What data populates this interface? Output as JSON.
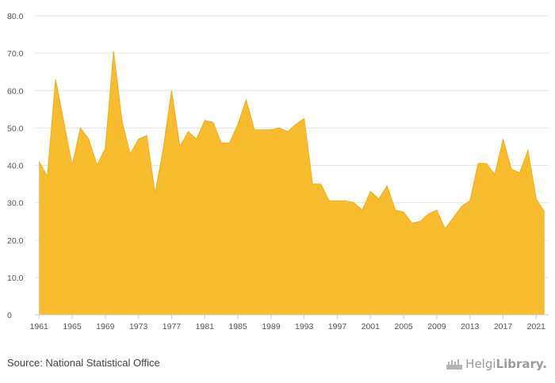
{
  "chart_data": {
    "type": "area",
    "x": [
      1961,
      1962,
      1963,
      1964,
      1965,
      1966,
      1967,
      1968,
      1969,
      1970,
      1971,
      1972,
      1973,
      1974,
      1975,
      1976,
      1977,
      1978,
      1979,
      1980,
      1981,
      1982,
      1983,
      1984,
      1985,
      1986,
      1987,
      1988,
      1989,
      1990,
      1991,
      1992,
      1993,
      1994,
      1995,
      1996,
      1997,
      1998,
      1999,
      2000,
      2001,
      2002,
      2003,
      2004,
      2005,
      2006,
      2007,
      2008,
      2009,
      2010,
      2011,
      2012,
      2013,
      2014,
      2015,
      2016,
      2017,
      2018,
      2019,
      2020,
      2021,
      2022
    ],
    "values": [
      41.0,
      37.0,
      63.0,
      51.5,
      40.0,
      50.0,
      47.0,
      40.0,
      44.5,
      70.5,
      52.0,
      43.0,
      47.0,
      48.0,
      32.5,
      44.5,
      60.0,
      45.0,
      49.0,
      47.0,
      52.0,
      51.5,
      46.0,
      46.0,
      51.0,
      57.5,
      49.5,
      49.5,
      49.5,
      50.0,
      49.0,
      51.0,
      52.5,
      35.0,
      35.0,
      30.5,
      30.5,
      30.5,
      30.0,
      28.0,
      33.0,
      31.0,
      34.5,
      28.0,
      27.5,
      24.5,
      25.0,
      27.0,
      28.0,
      23.0,
      26.0,
      29.0,
      30.5,
      40.5,
      40.5,
      37.5,
      47.0,
      39.0,
      38.0,
      44.0,
      31.0,
      27.5
    ],
    "xlim": [
      1960.5,
      2022.5
    ],
    "ylim": [
      0,
      80
    ],
    "y_ticks": [
      "0",
      "10.0",
      "20.0",
      "30.0",
      "40.0",
      "50.0",
      "60.0",
      "70.0",
      "80.0"
    ],
    "y_tick_values": [
      0,
      10,
      20,
      30,
      40,
      50,
      60,
      70,
      80
    ],
    "x_ticks": [
      "1961",
      "1965",
      "1969",
      "1973",
      "1977",
      "1981",
      "1985",
      "1989",
      "1993",
      "1997",
      "2001",
      "2005",
      "2009",
      "2013",
      "2017",
      "2021"
    ],
    "x_tick_values": [
      1961,
      1965,
      1969,
      1973,
      1977,
      1981,
      1985,
      1989,
      1993,
      1997,
      2001,
      2005,
      2009,
      2013,
      2017,
      2021
    ],
    "title": "",
    "xlabel": "",
    "ylabel": "",
    "grid": true,
    "fill_color": "#F9BC2F",
    "line_color": "#F0AE16"
  },
  "footer": {
    "source": "Source: National Statistical Office",
    "brand_left": "Helgi",
    "brand_right": "Library."
  }
}
